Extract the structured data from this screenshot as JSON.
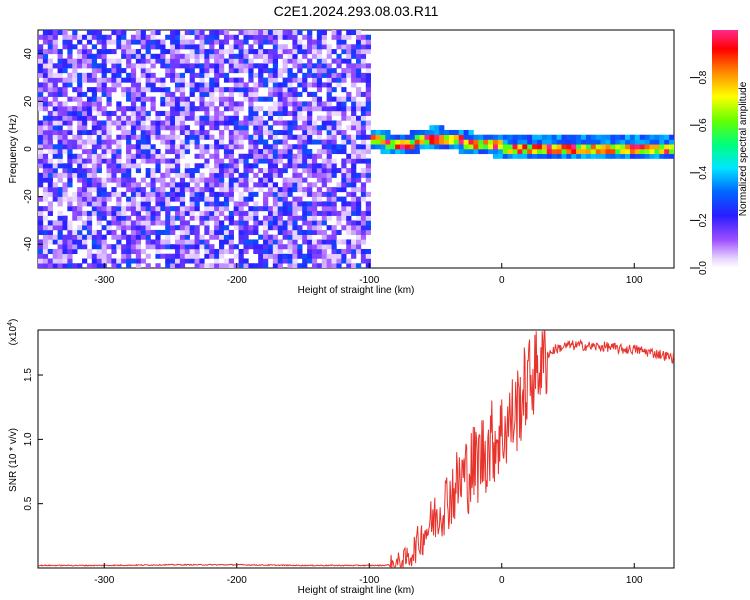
{
  "title": "C2E1.2024.293.08.03.R11",
  "chart_data": [
    {
      "type": "heatmap",
      "xlabel": "Height of straight line (km)",
      "ylabel": "Frequency (Hz)",
      "xlim": [
        -350,
        130
      ],
      "ylim": [
        -50,
        50
      ],
      "xticks": [
        -300,
        -200,
        -100,
        0,
        100
      ],
      "yticks": [
        -40,
        -20,
        0,
        20,
        40
      ],
      "colorbar": {
        "label": "Normalized spectral amplitude",
        "range": [
          0.0,
          1.0
        ],
        "ticks": [
          0.0,
          0.2,
          0.4,
          0.6,
          0.8
        ],
        "colormap": "rainbow (white-violet-blue-cyan-green-yellow-red-magenta)"
      },
      "regions": [
        {
          "x": [
            -350,
            -100
          ],
          "y": [
            -50,
            50
          ],
          "amplitude": "low (0.0-0.3), noisy"
        },
        {
          "x": [
            -100,
            130
          ],
          "y": [
            -3,
            3
          ],
          "amplitude": "high (0.5-1.0), narrow carrier line near 0 Hz"
        }
      ],
      "carrier_offset": {
        "x": [
          -100,
          -90,
          -80,
          -70,
          -60,
          -50,
          -40,
          -30,
          -20,
          -10,
          0,
          20,
          60,
          100,
          130
        ],
        "y": [
          4,
          3,
          1.5,
          2.5,
          4,
          5,
          4,
          3,
          2,
          1.5,
          1,
          0.5,
          0.5,
          0.5,
          0.5
        ]
      }
    },
    {
      "type": "line",
      "xlabel": "Height of straight line (km)",
      "ylabel": "SNR (10 * v/v)",
      "y_multiplier": "(x10^4)",
      "xlim": [
        -350,
        130
      ],
      "ylim": [
        0,
        1.85
      ],
      "xticks": [
        -300,
        -200,
        -100,
        0,
        100
      ],
      "yticks": [
        0.5,
        1.0,
        1.5
      ],
      "color": "#e8322c",
      "series": [
        {
          "x": [
            -350,
            -300,
            -250,
            -200,
            -150,
            -110,
            -100,
            -90,
            -80,
            -70,
            -60,
            -50,
            -40,
            -30,
            -20,
            -10,
            0,
            10,
            20,
            30,
            40,
            50,
            60,
            70,
            80,
            90,
            100,
            110,
            120,
            130
          ],
          "values": [
            0.02,
            0.02,
            0.025,
            0.025,
            0.02,
            0.02,
            0.02,
            0.02,
            0.03,
            0.08,
            0.25,
            0.4,
            0.55,
            0.7,
            0.8,
            0.95,
            1.05,
            1.2,
            1.45,
            1.62,
            1.7,
            1.73,
            1.73,
            1.72,
            1.72,
            1.7,
            1.7,
            1.68,
            1.66,
            1.63
          ]
        }
      ]
    }
  ]
}
